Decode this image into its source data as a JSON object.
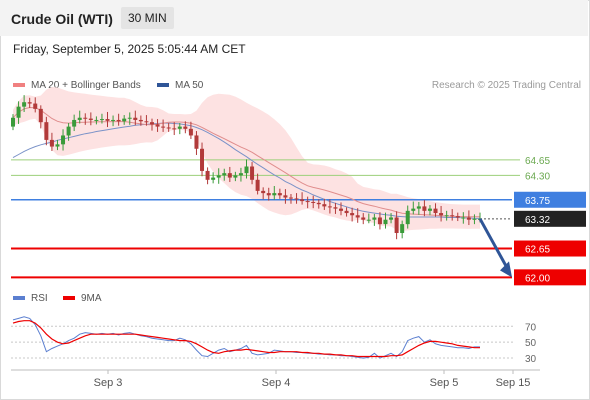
{
  "header": {
    "instrument": "Crude Oil (WTI)",
    "timeframe": "30 MIN"
  },
  "timestamp": "Friday, September 5, 2025 5:05:44 AM CET",
  "legend_main": [
    {
      "label": "MA 20 + Bollinger Bands",
      "color": "#f08080"
    },
    {
      "label": "MA 50",
      "color": "#2f5597"
    }
  ],
  "legend_rsi": [
    {
      "label": "RSI",
      "color": "#5b7fd0"
    },
    {
      "label": "9MA",
      "color": "#ee0000"
    }
  ],
  "copyright": "Research © 2025 Trading Central",
  "colors": {
    "bull": "#3a9b3a",
    "bear": "#b23a3a",
    "resistance": "#9ccf7a",
    "pivot": "#3f7fe0",
    "support": "#ee0000",
    "arrow": "#2f5597",
    "current": "#222222"
  },
  "chart_data": {
    "type": "candlestick",
    "x_tick_labels": [
      "Sep 3",
      "Sep 4",
      "Sep 5",
      "Sep 15"
    ],
    "price_levels": [
      {
        "value": 64.65,
        "label": "64.65",
        "kind": "resistance"
      },
      {
        "value": 64.3,
        "label": "64.30",
        "kind": "resistance"
      },
      {
        "value": 63.75,
        "label": "63.75",
        "kind": "pivot"
      },
      {
        "value": 63.32,
        "label": "63.32",
        "kind": "current"
      },
      {
        "value": 62.65,
        "label": "62.65",
        "kind": "support"
      },
      {
        "value": 62.0,
        "label": "62.00",
        "kind": "support"
      }
    ],
    "price_range": [
      61.94,
      66.0
    ],
    "forecast": {
      "from": 63.32,
      "to": 62.0
    },
    "close_series": [
      65.6,
      65.85,
      65.95,
      65.92,
      65.8,
      65.5,
      65.1,
      64.95,
      65.0,
      65.2,
      65.4,
      65.55,
      65.6,
      65.58,
      65.55,
      65.55,
      65.57,
      65.53,
      65.55,
      65.52,
      65.58,
      65.6,
      65.55,
      65.52,
      65.5,
      65.45,
      65.4,
      65.38,
      65.36,
      65.35,
      65.4,
      65.35,
      65.2,
      64.9,
      64.4,
      64.2,
      64.25,
      64.3,
      64.35,
      64.25,
      64.3,
      64.35,
      64.5,
      64.2,
      63.95,
      63.9,
      63.85,
      63.9,
      63.85,
      63.8,
      63.78,
      63.76,
      63.72,
      63.7,
      63.68,
      63.65,
      63.6,
      63.58,
      63.55,
      63.5,
      63.45,
      63.4,
      63.35,
      63.3,
      63.3,
      63.35,
      63.2,
      63.3,
      63.35,
      63.0,
      63.2,
      63.5,
      63.55,
      63.6,
      63.5,
      63.55,
      63.45,
      63.4,
      63.4,
      63.38,
      63.35,
      63.35,
      63.3,
      63.32,
      63.32
    ],
    "ma50_series": [
      64.7,
      64.77,
      64.84,
      64.9,
      64.95,
      64.99,
      65.02,
      65.05,
      65.09,
      65.12,
      65.15,
      65.18,
      65.21,
      65.24,
      65.26,
      65.29,
      65.31,
      65.33,
      65.35,
      65.37,
      65.39,
      65.41,
      65.43,
      65.44,
      65.45,
      65.46,
      65.47,
      65.48,
      65.48,
      65.47,
      65.46,
      65.44,
      65.42,
      65.38,
      65.33,
      65.27,
      65.2,
      65.13,
      65.05,
      64.97,
      64.88,
      64.8,
      64.72,
      64.63,
      64.55,
      64.47,
      64.39,
      64.31,
      64.24,
      64.16,
      64.1,
      64.03,
      63.97,
      63.92,
      63.86,
      63.81,
      63.76,
      63.71,
      63.67,
      63.63,
      63.59,
      63.55,
      63.52,
      63.49,
      63.47,
      63.45,
      63.43,
      63.41,
      63.4,
      63.38,
      63.37,
      63.36,
      63.36,
      63.36,
      63.36,
      63.36,
      63.36,
      63.36,
      63.35,
      63.35,
      63.35,
      63.34,
      63.34,
      63.33,
      63.33
    ],
    "rsi_levels": [
      70,
      50,
      30
    ],
    "rsi_range": [
      20,
      88
    ],
    "rsi_series": [
      78,
      80,
      82,
      80,
      72,
      58,
      38,
      42,
      45,
      48,
      52,
      55,
      60,
      62,
      61,
      60,
      61,
      60,
      61,
      59,
      61,
      62,
      60,
      58,
      57,
      55,
      54,
      53,
      52,
      52,
      55,
      53,
      48,
      40,
      33,
      32,
      36,
      40,
      42,
      38,
      40,
      42,
      46,
      36,
      34,
      35,
      36,
      40,
      39,
      38,
      38,
      37,
      37,
      36,
      36,
      35,
      35,
      34,
      34,
      33,
      33,
      32,
      31,
      30,
      31,
      36,
      30,
      33,
      36,
      32,
      38,
      52,
      55,
      57,
      50,
      53,
      48,
      46,
      45,
      44,
      43,
      43,
      42,
      44,
      44
    ],
    "rsi_ma_series": [
      74,
      76,
      77,
      77,
      74,
      68,
      60,
      54,
      50,
      48,
      49,
      52,
      55,
      58,
      60,
      60,
      60,
      60,
      60,
      60,
      60,
      60,
      60,
      59,
      58,
      57,
      56,
      55,
      54,
      53,
      52,
      52,
      51,
      48,
      44,
      40,
      37,
      36,
      38,
      39,
      40,
      40,
      41,
      40,
      39,
      38,
      37,
      37,
      38,
      38,
      38,
      38,
      37,
      37,
      36,
      36,
      35,
      35,
      34,
      34,
      33,
      33,
      32,
      32,
      32,
      32,
      32,
      32,
      33,
      33,
      34,
      38,
      42,
      46,
      49,
      51,
      51,
      50,
      49,
      48,
      46,
      45,
      44,
      43,
      43
    ]
  }
}
